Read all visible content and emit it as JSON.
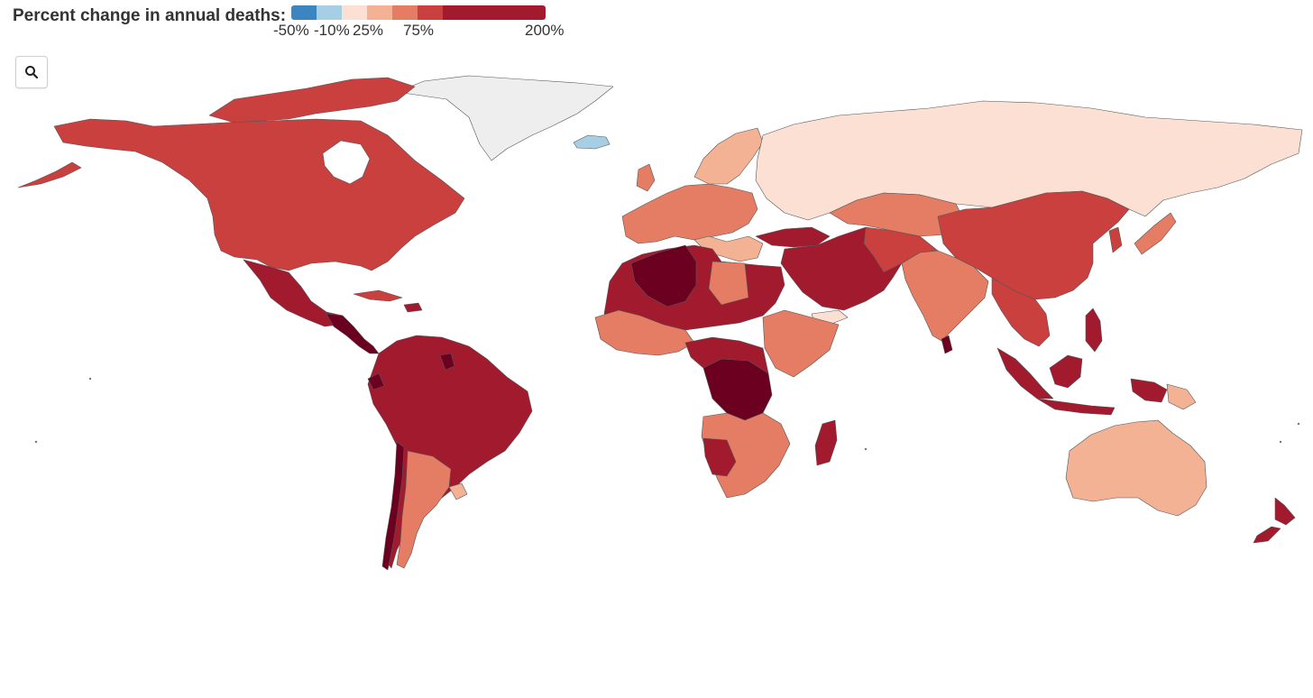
{
  "legend": {
    "title": "Percent change in annual deaths:",
    "labels": [
      "-50%",
      "-10%",
      "25%",
      "75%",
      "200%"
    ],
    "colors": [
      "#3d85c1",
      "#a6cfe6",
      "#fbe0d3",
      "#f4b294",
      "#e47d64",
      "#c9403f",
      "#a21a2e"
    ]
  },
  "controls": {
    "zoom_icon": "magnifier-icon"
  },
  "map_colors": {
    "greenland": "#eeeeee",
    "no_data": "#eeeeee",
    "iceland": "#a6cfe6",
    "bin_25": "#fbe0d3",
    "bin_75": "#f4b294",
    "bin_100": "#e47d64",
    "bin_150": "#c9403f",
    "bin_200": "#a21a2e",
    "bin_max": "#6b0020"
  }
}
